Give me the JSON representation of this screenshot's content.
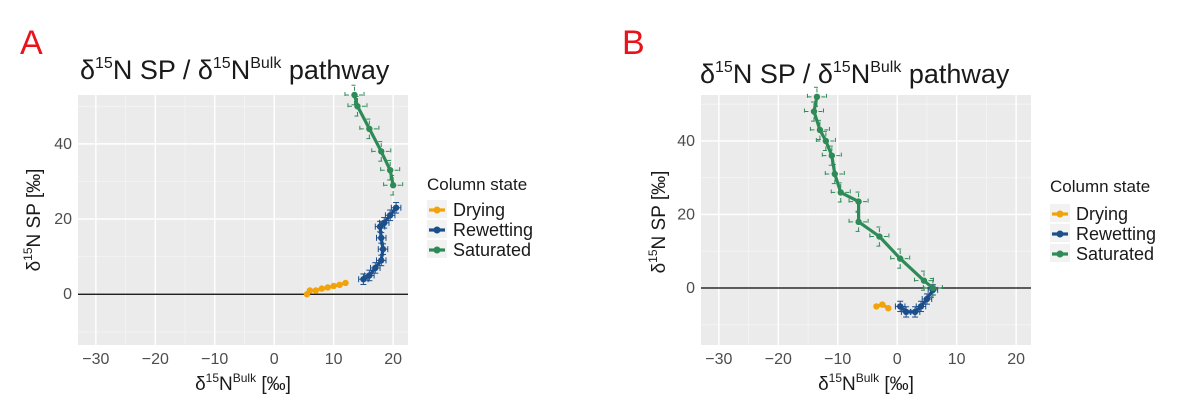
{
  "chart_data": [
    {
      "type": "line",
      "panel_label": "A",
      "title": "δ15N SP / δ15NBulk pathway",
      "xlabel": "δ15NBulk [‰]",
      "ylabel": "δ15N SP [‰]",
      "xlim": [
        -33,
        22.5
      ],
      "ylim": [
        -13.5,
        53
      ],
      "xticks": [
        -30,
        -20,
        -10,
        0,
        10,
        20
      ],
      "yticks": [
        0,
        20,
        40
      ],
      "hline": 0,
      "legend_title": "Column state",
      "legend_position": "right",
      "series": [
        {
          "name": "Drying",
          "color": "#f0a30a",
          "error_bars": "none",
          "points": [
            [
              5.5,
              0
            ],
            [
              6,
              1
            ],
            [
              7,
              1
            ],
            [
              8,
              1.5
            ],
            [
              9,
              1.8
            ],
            [
              10,
              2.2
            ],
            [
              11,
              2.5
            ],
            [
              12,
              3
            ]
          ]
        },
        {
          "name": "Rewetting",
          "color": "#1b4f8c",
          "error_bars": "solid",
          "points": [
            [
              15,
              4
            ],
            [
              16,
              5
            ],
            [
              17,
              7
            ],
            [
              18,
              9
            ],
            [
              18.3,
              12
            ],
            [
              18,
              15
            ],
            [
              17.8,
              18
            ],
            [
              18.5,
              19
            ],
            [
              19.5,
              21
            ],
            [
              20.5,
              23
            ]
          ]
        },
        {
          "name": "Saturated",
          "color": "#2e8b57",
          "error_bars": "dashed",
          "points": [
            [
              20,
              29
            ],
            [
              19.5,
              33
            ],
            [
              18,
              38
            ],
            [
              16,
              44
            ],
            [
              14,
              50
            ],
            [
              13.5,
              53
            ]
          ]
        }
      ]
    },
    {
      "type": "line",
      "panel_label": "B",
      "title": "δ15N SP / δ15NBulk pathway",
      "xlabel": "δ15NBulk [‰]",
      "ylabel": "δ15N SP [‰]",
      "xlim": [
        -33,
        22.5
      ],
      "ylim": [
        -15.5,
        52.5
      ],
      "xticks": [
        -30,
        -20,
        -10,
        0,
        10,
        20
      ],
      "yticks": [
        0,
        20,
        40
      ],
      "hline": 0,
      "legend_title": "Column state",
      "legend_position": "right",
      "series": [
        {
          "name": "Drying",
          "color": "#f0a30a",
          "error_bars": "none",
          "points": [
            [
              -3.5,
              -5
            ],
            [
              -2.5,
              -4.5
            ],
            [
              -1.5,
              -5.5
            ]
          ]
        },
        {
          "name": "Rewetting",
          "color": "#1b4f8c",
          "error_bars": "solid",
          "points": [
            [
              0.5,
              -5
            ],
            [
              1.5,
              -6.5
            ],
            [
              3,
              -6.5
            ],
            [
              4,
              -5
            ],
            [
              5,
              -3
            ],
            [
              6,
              -0.5
            ]
          ]
        },
        {
          "name": "Saturated",
          "color": "#2e8b57",
          "error_bars": "dashed",
          "points": [
            [
              6,
              0
            ],
            [
              4.5,
              2
            ],
            [
              0.5,
              8
            ],
            [
              -3,
              14
            ],
            [
              -6.5,
              18
            ],
            [
              -6.5,
              23.5
            ],
            [
              -9.5,
              26
            ],
            [
              -10.5,
              31
            ],
            [
              -11,
              36
            ],
            [
              -12,
              40
            ],
            [
              -13,
              43
            ],
            [
              -14,
              48
            ],
            [
              -13.5,
              52
            ]
          ]
        }
      ]
    }
  ]
}
